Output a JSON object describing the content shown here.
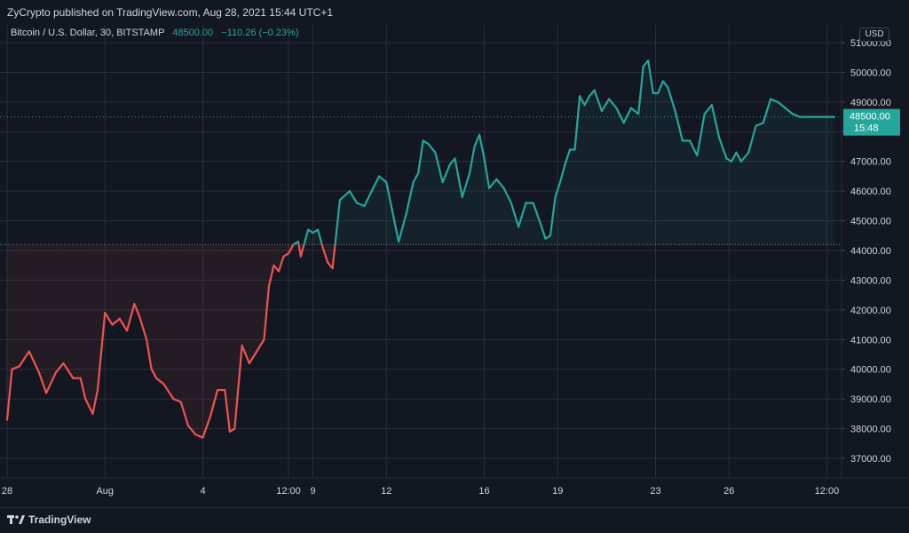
{
  "header": {
    "published": "ZyCrypto published on TradingView.com, Aug 28, 2021 15:44 UTC+1"
  },
  "legend": {
    "symbol": "Bitcoin / U.S. Dollar, 30, BITSTAMP",
    "price": "48500.00",
    "change": "−110.26 (−0.23%)"
  },
  "currency_button": "USD",
  "last_price": {
    "price": "48500.00",
    "countdown": "15:48"
  },
  "footer": {
    "brand": "TradingView"
  },
  "colors": {
    "up": "#26a69a",
    "down": "#ef5350",
    "background": "#131722",
    "grid": "#2a2e39"
  },
  "chart_data": {
    "type": "line",
    "baseline": 44200,
    "ylim": [
      36400,
      51600
    ],
    "y_ticks": [
      51000,
      50000,
      49000,
      48000,
      47000,
      46000,
      45000,
      44000,
      43000,
      42000,
      41000,
      40000,
      39000,
      38000,
      37000
    ],
    "y_tick_labels": [
      "51000.00",
      "50000.00",
      "49000.00",
      "48000.00",
      "47000.00",
      "46000.00",
      "45000.00",
      "44000.00",
      "43000.00",
      "42000.00",
      "41000.00",
      "40000.00",
      "39000.00",
      "38000.00",
      "37000.00"
    ],
    "x_tick_labels": [
      "28",
      "Aug",
      "4",
      "12:00",
      "9",
      "12",
      "16",
      "19",
      "23",
      "26",
      "12:00"
    ],
    "x_tick_days": [
      0,
      4,
      8,
      11.5,
      12.5,
      15.5,
      19.5,
      22.5,
      26.5,
      29.5,
      33.5
    ],
    "series": [
      {
        "x_days": [
          0,
          0.2,
          0.5,
          0.9,
          1.3,
          1.6,
          2.0,
          2.3,
          2.7,
          3.0,
          3.2,
          3.5,
          3.7,
          4.0,
          4.3,
          4.6,
          4.9,
          5.2,
          5.4,
          5.7,
          5.9,
          6.1,
          6.4,
          6.8,
          7.1,
          7.4,
          7.7,
          8.0,
          8.3,
          8.6,
          8.9,
          9.1,
          9.3,
          9.6,
          9.9,
          10.2,
          10.5,
          10.7,
          10.9,
          11.1,
          11.3,
          11.5,
          11.7,
          11.9,
          12.0,
          12.1,
          12.3,
          12.5,
          12.7,
          12.9,
          13.1,
          13.3,
          13.6,
          14.0,
          14.3,
          14.6,
          14.9,
          15.2,
          15.5,
          15.8,
          16.0,
          16.3,
          16.6,
          16.8,
          17.0,
          17.2,
          17.5,
          17.8,
          18.1,
          18.3,
          18.6,
          18.9,
          19.1,
          19.3,
          19.5,
          19.7,
          20.0,
          20.3,
          20.6,
          20.9,
          21.2,
          21.5,
          21.8,
          22.0,
          22.2,
          22.4,
          22.6,
          22.8,
          23.0,
          23.2,
          23.4,
          23.6,
          23.8,
          24.0,
          24.3,
          24.6,
          24.9,
          25.2,
          25.5,
          25.8,
          26.0,
          26.2,
          26.4,
          26.6,
          26.8,
          27.0,
          27.3,
          27.6,
          27.9,
          28.2,
          28.5,
          28.8,
          29.1,
          29.4,
          29.6,
          29.8,
          30.0,
          30.3,
          30.6,
          30.9,
          31.2,
          31.5,
          31.8,
          32.1,
          32.4,
          32.7,
          33.0,
          33.3,
          33.6,
          33.8
        ],
        "values": [
          38300,
          40000,
          40100,
          40600,
          39900,
          39200,
          39900,
          40200,
          39700,
          39700,
          39000,
          38500,
          39300,
          41900,
          41500,
          41700,
          41300,
          42200,
          41800,
          41000,
          40000,
          39700,
          39500,
          39000,
          38900,
          38100,
          37800,
          37700,
          38400,
          39300,
          39300,
          37900,
          38000,
          40800,
          40200,
          40600,
          41000,
          42800,
          43500,
          43300,
          43800,
          43900,
          44200,
          44300,
          43800,
          44100,
          44700,
          44600,
          44700,
          44100,
          43600,
          43400,
          45700,
          46000,
          45600,
          45500,
          46000,
          46500,
          46300,
          45100,
          44300,
          45200,
          46300,
          46600,
          47700,
          47600,
          47300,
          46300,
          46900,
          47100,
          45800,
          46600,
          47500,
          47900,
          47100,
          46100,
          46400,
          46100,
          45600,
          44800,
          45600,
          45600,
          44900,
          44400,
          44500,
          45800,
          46300,
          46900,
          47400,
          47400,
          49200,
          48900,
          49200,
          49400,
          48700,
          49100,
          48800,
          48300,
          48800,
          48600,
          50200,
          50400,
          49300,
          49300,
          49700,
          49500,
          48700,
          47700,
          47700,
          47200,
          48600,
          48900,
          47800,
          47100,
          47000,
          47300,
          47000,
          47300,
          48200,
          48300,
          49100,
          49000,
          48800,
          48600,
          48500,
          48500,
          48500,
          48500,
          48500,
          48500
        ]
      }
    ],
    "last_value": 48500
  }
}
